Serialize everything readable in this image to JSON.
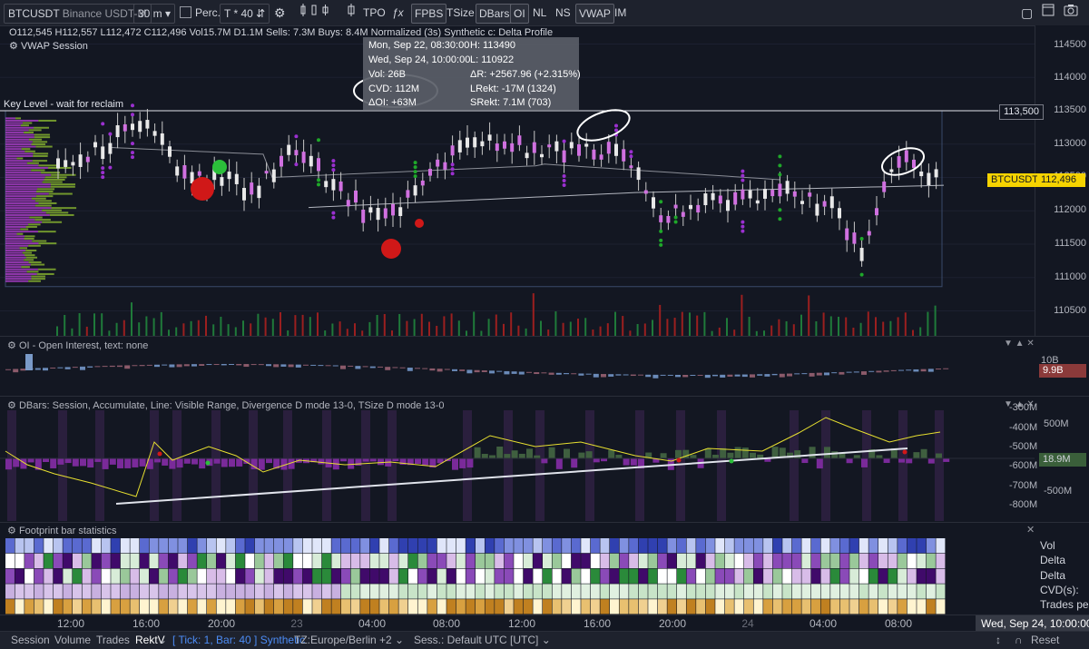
{
  "toolbar": {
    "symbol": "BTCUSDT",
    "exchange": "Binance USDT-M",
    "interval": "30 m",
    "perc_label": "Perc.",
    "tick_label": "T * 40",
    "buttons": [
      "TPO",
      "FPBS",
      "TSize",
      "DBars",
      "OI",
      "NL",
      "NS",
      "VWAP",
      "IM"
    ],
    "active_buttons": [
      "FPBS",
      "DBars",
      "OI",
      "VWAP"
    ]
  },
  "legend": {
    "ohlc": "O112,545 H112,557 L112,472 C112,496",
    "vol": "Vol15.7M",
    "d": "D1.1M",
    "sells": "Sells: 7.3M",
    "buys": "Buys: 8.4M",
    "normalized": "Normalized (3s)",
    "synthetic": "Synthetic",
    "delta_profile": "c: Delta Profile",
    "vwap": "VWAP Session"
  },
  "tooltip": {
    "start": "Mon, Sep 22, 08:30:00",
    "end": "Wed, Sep 24, 10:00:00",
    "high": "H: 113490",
    "low": "L: 110922",
    "vol": "Vol: 26B",
    "delta_r": "ΔR: +2567.96 (+2.315%)",
    "cvd": "CVD: 112M",
    "lrekt": "LRekt: -17M (1324)",
    "doi": "ΔOI: +63M",
    "srekt": "SRekt: 7.1M (703)"
  },
  "key_level": {
    "label": "Key Level - wait for reclaim",
    "price_tag": "113,500"
  },
  "price_axis": {
    "labels": [
      "114500",
      "114000",
      "113500",
      "113000",
      "112500",
      "112000",
      "111500",
      "111000",
      "110500"
    ],
    "symbol_tag": "BTCUSDT",
    "last_price": "112,496"
  },
  "oi_pane": {
    "title": "OI - Open Interest, text: none",
    "axis_label": "10B",
    "value_tag": "9.9B"
  },
  "dbars_pane": {
    "title": "DBars: Session, Accumulate, Line: Visible Range, Divergence D mode 13-0, TSize D mode 13-0",
    "inner_labels": [
      "-300M",
      "-400M",
      "-500M",
      "-600M",
      "-700M",
      "-800M"
    ],
    "outer_labels": [
      "500M",
      "-500M"
    ],
    "value_tag": "18.9M"
  },
  "footprint": {
    "title": "Footprint bar statistics",
    "rows": [
      "Vol",
      "Delta",
      "Delta",
      "CVD(s):",
      "Trades pe"
    ]
  },
  "time_axis": {
    "labels": [
      "12:00",
      "16:00",
      "20:00",
      "23",
      "04:00",
      "08:00",
      "12:00",
      "16:00",
      "20:00",
      "24",
      "04:00",
      "08:00"
    ],
    "cursor": "Wed, Sep 24, 10:00:00"
  },
  "bottom_bar": {
    "tabs": [
      "Session",
      "Volume",
      "Trades",
      "RektV"
    ],
    "status": "[ Tick: 1, Bar: 40 ] Synthetic",
    "tz": "TZ:Europe/Berlin +2",
    "sess": "Sess.: Default UTC [UTC]",
    "reset": "Reset"
  },
  "colors": {
    "bull": "#26a69a",
    "bear": "#ef5350",
    "delta_pos": "#9acd32",
    "delta_neg": "#c060e0",
    "accent_tag": "#f5d300",
    "oi_tag": "#8b3a3a",
    "dbars_tag": "#3a5f3a"
  }
}
